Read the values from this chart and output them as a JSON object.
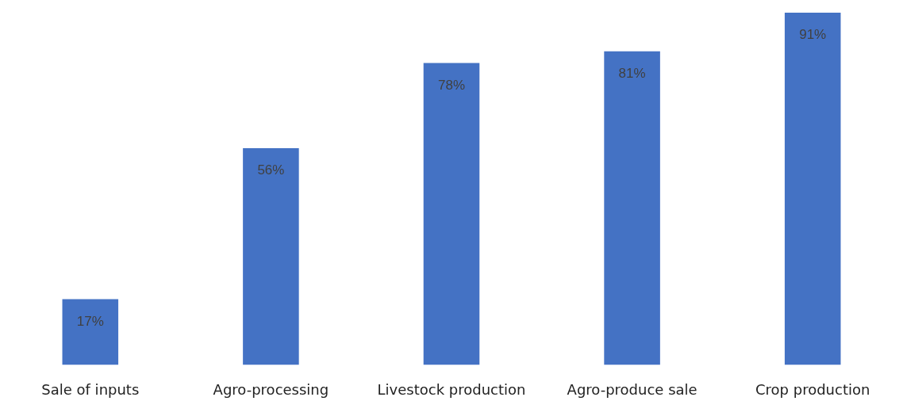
{
  "chart_data": {
    "type": "bar",
    "categories": [
      "Sale of inputs",
      "Agro-processing",
      "Livestock production",
      "Agro-produce sale",
      "Crop production"
    ],
    "values": [
      17,
      56,
      78,
      81,
      91
    ],
    "color": "#4472c4",
    "data_labels": true,
    "value_labels": [
      "17%",
      "56%",
      "78%",
      "81%",
      "91%"
    ],
    "grid": false,
    "legend": false
  }
}
